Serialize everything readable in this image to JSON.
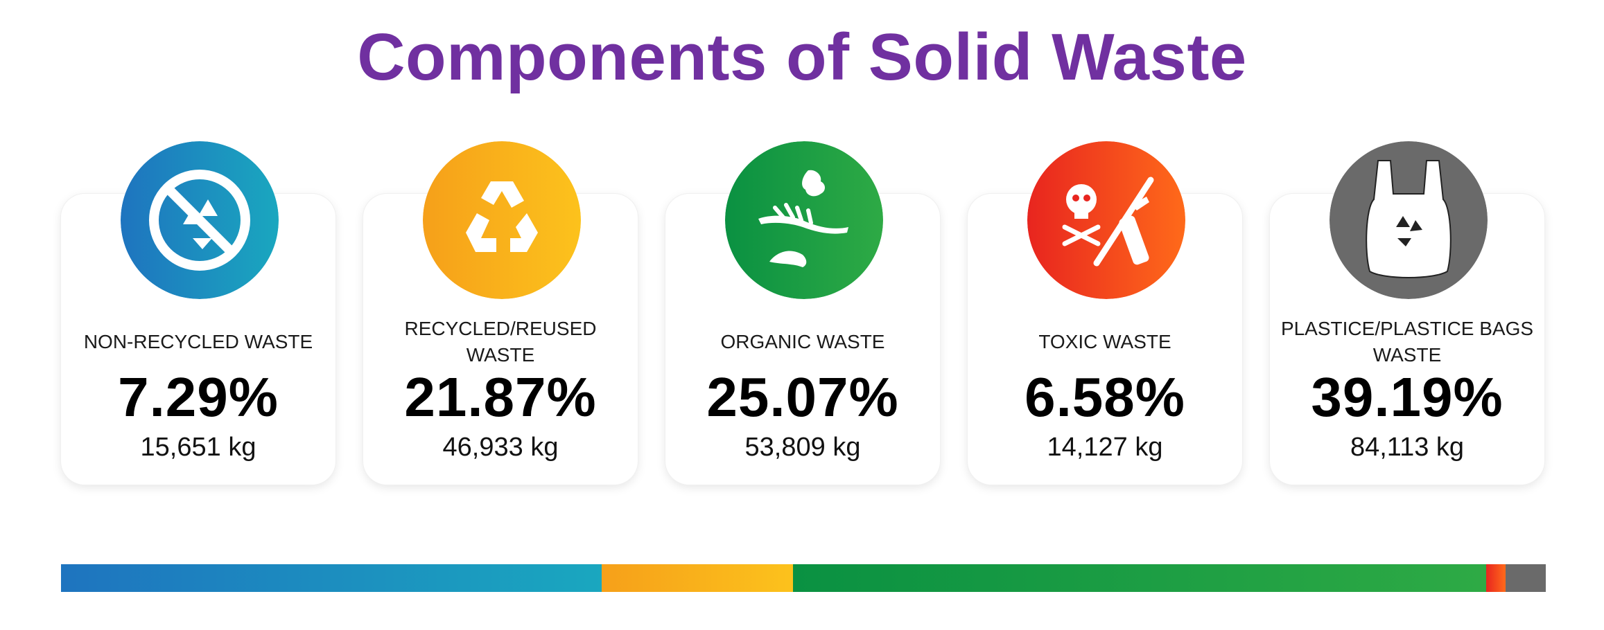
{
  "title": "Components of Solid Waste",
  "colors": {
    "title": "#7030A0"
  },
  "chart_data": {
    "type": "bar",
    "title": "Components of Solid Waste",
    "categories": [
      "NON-RECYCLED WASTE",
      "RECYCLED/REUSED WASTE",
      "ORGANIC WASTE",
      "TOXIC WASTE",
      "PLASTICE/PLASTICE BAGS WASTE"
    ],
    "percent_labels": [
      "7.29%",
      "21.87%",
      "25.07%",
      "6.58%",
      "39.19%"
    ],
    "kg_labels": [
      "15,651 kg",
      "46,933 kg",
      "53,809 kg",
      "14,127 kg",
      "84,113 kg"
    ],
    "values_percent": [
      7.29,
      21.87,
      25.07,
      6.58,
      39.19
    ],
    "values_kg": [
      15651,
      46933,
      53809,
      14127,
      84113
    ],
    "stacked_bar_fractions": [
      0.364,
      0.129,
      0.467,
      0.013,
      0.027
    ],
    "series_colors": [
      [
        "#1E74BF",
        "#1AA7BF"
      ],
      [
        "#F6A01A",
        "#FCC21C"
      ],
      [
        "#0A9142",
        "#2EAA45"
      ],
      [
        "#E8251F",
        "#FF6A1A"
      ],
      [
        "#6A6A6A",
        "#6A6A6A"
      ]
    ],
    "icons": [
      "no-recycle-icon",
      "recycle-icon",
      "organic-waste-icon",
      "toxic-waste-icon",
      "plastic-bag-icon"
    ]
  }
}
